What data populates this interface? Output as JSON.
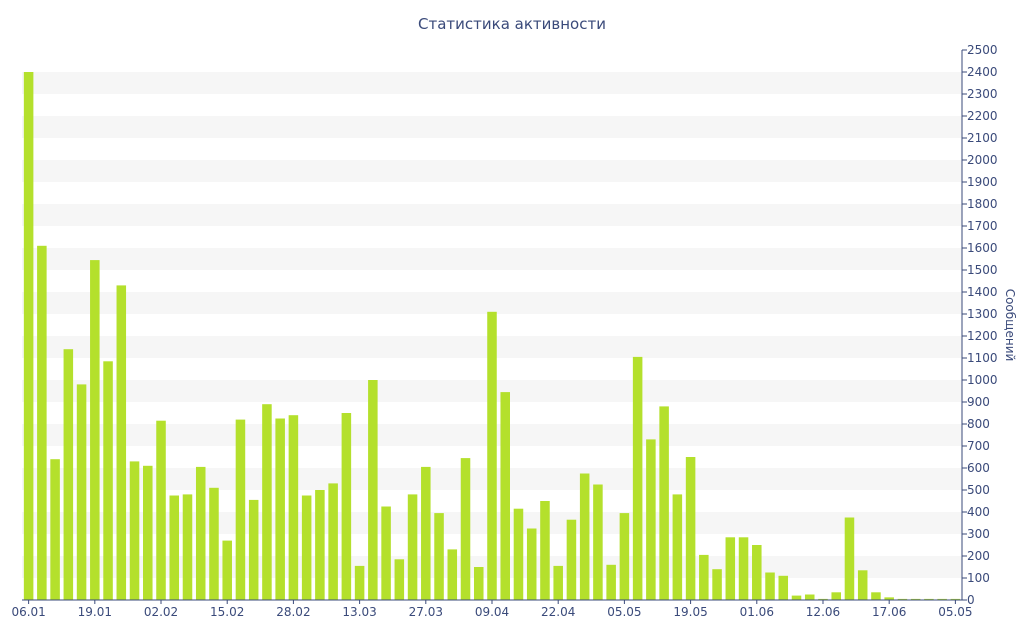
{
  "chart_data": {
    "type": "bar",
    "title": "Статистика активности",
    "ylabel": "Сообщений",
    "xlabel": "",
    "ylim": [
      0,
      2500
    ],
    "y_ticks": [
      0,
      100,
      200,
      300,
      400,
      500,
      600,
      700,
      800,
      900,
      1000,
      1100,
      1200,
      1300,
      1400,
      1500,
      1600,
      1700,
      1800,
      1900,
      2000,
      2100,
      2200,
      2300,
      2400,
      2500
    ],
    "y_axis_position": "right",
    "grid": "alternating horizontal bands",
    "x_tick_labels": [
      {
        "label": "06.01",
        "index": 0
      },
      {
        "label": "19.01",
        "index": 5
      },
      {
        "label": "02.02",
        "index": 10
      },
      {
        "label": "15.02",
        "index": 15
      },
      {
        "label": "28.02",
        "index": 20
      },
      {
        "label": "13.03",
        "index": 25
      },
      {
        "label": "27.03",
        "index": 30
      },
      {
        "label": "09.04",
        "index": 35
      },
      {
        "label": "22.04",
        "index": 40
      },
      {
        "label": "05.05",
        "index": 45
      },
      {
        "label": "19.05",
        "index": 50
      },
      {
        "label": "01.06",
        "index": 55
      },
      {
        "label": "12.06",
        "index": 60
      },
      {
        "label": "17.06",
        "index": 65
      },
      {
        "label": "05.05",
        "index": 70
      }
    ],
    "values": [
      2400,
      1610,
      640,
      1140,
      980,
      1545,
      1085,
      1430,
      630,
      610,
      815,
      475,
      480,
      605,
      510,
      270,
      820,
      455,
      890,
      825,
      840,
      475,
      500,
      530,
      850,
      155,
      1000,
      425,
      185,
      480,
      605,
      395,
      230,
      645,
      150,
      1310,
      945,
      415,
      325,
      450,
      155,
      365,
      575,
      525,
      160,
      395,
      1105,
      730,
      880,
      480,
      650,
      205,
      140,
      285,
      285,
      250,
      125,
      110,
      20,
      25,
      5,
      35,
      375,
      135,
      35,
      12,
      5,
      5,
      5,
      5,
      5
    ]
  }
}
